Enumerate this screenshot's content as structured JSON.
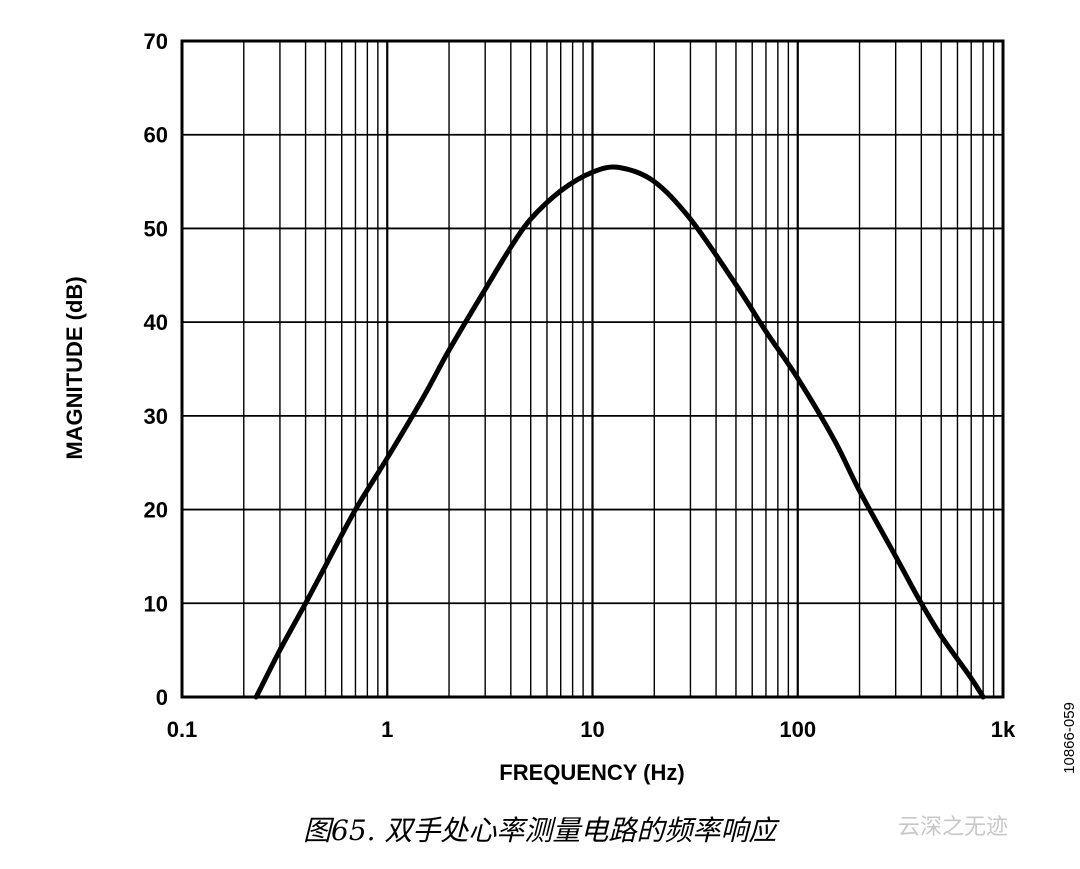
{
  "chart_data": {
    "type": "line",
    "xscale": "log",
    "xlim": [
      0.1,
      1000
    ],
    "ylim": [
      0,
      70
    ],
    "grid": true,
    "xlabel": "FREQUENCY (Hz)",
    "ylabel": "MAGNITUDE (dB)",
    "x_tick_labels": [
      "0.1",
      "1",
      "10",
      "100",
      "1k"
    ],
    "y_tick_labels": [
      "0",
      "10",
      "20",
      "30",
      "40",
      "50",
      "60",
      "70"
    ],
    "series": [
      {
        "x": [
          0.23,
          0.3,
          0.4,
          0.5,
          0.7,
          1,
          1.5,
          2,
          3,
          4,
          5,
          7,
          10,
          13.5,
          20,
          30,
          50,
          70,
          100,
          150,
          200,
          300,
          400,
          500,
          700,
          800
        ],
        "y": [
          0,
          5,
          10,
          14,
          20,
          25.5,
          32,
          37,
          43.5,
          48,
          51,
          54,
          56,
          56.5,
          55,
          51,
          44,
          39,
          34,
          27.5,
          22,
          15,
          10,
          6.5,
          2,
          0
        ],
        "color": "#000000"
      }
    ]
  },
  "figure_id": "10866-059",
  "caption": "图65. 双手处心率测量电路的频率响应",
  "watermark": "云深之无迹"
}
